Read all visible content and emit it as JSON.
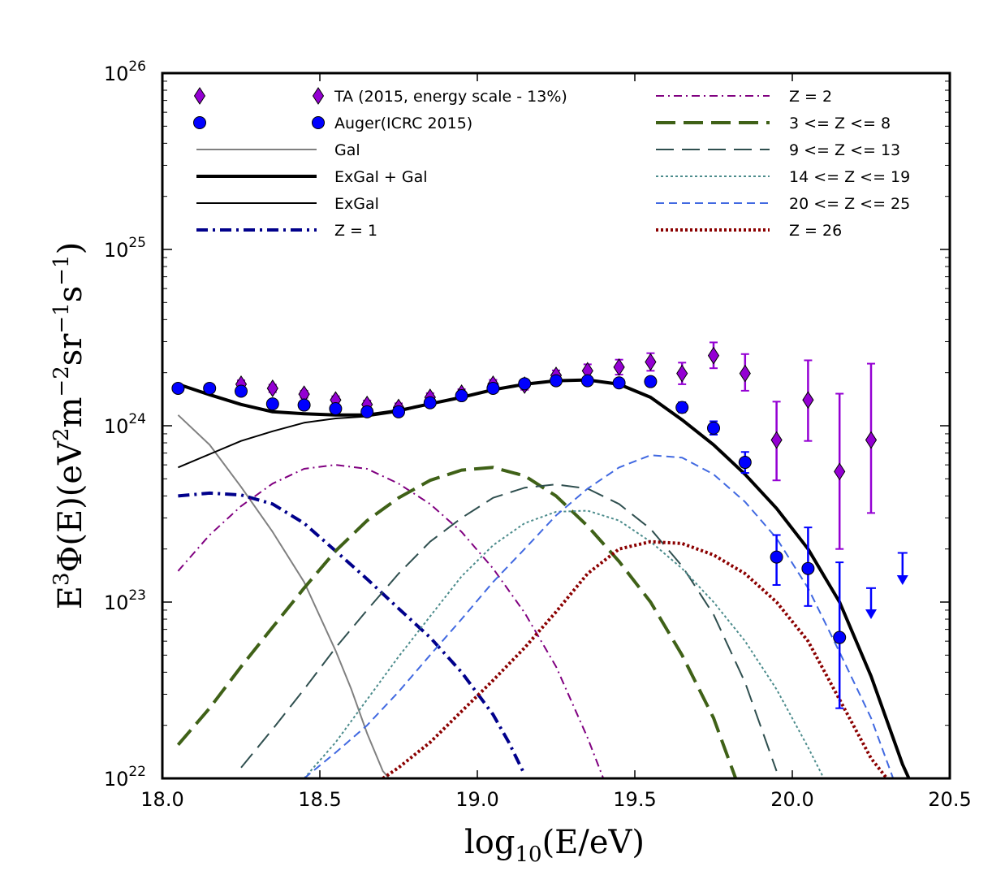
{
  "chart_data": {
    "type": "line",
    "title": "",
    "xlabel": "log10(E/eV)",
    "ylabel": "E3Φ(E)(eV2m−2sr−1s−1)",
    "xlim": [
      18.0,
      20.5
    ],
    "ylim": [
      1e+22,
      1e+26
    ],
    "yscale": "log",
    "grid": false,
    "legend_position": "top",
    "x_ticks": [
      {
        "value": 18.0,
        "label": "18.0"
      },
      {
        "value": 18.5,
        "label": "18.5"
      },
      {
        "value": 19.0,
        "label": "19.0"
      },
      {
        "value": 19.5,
        "label": "19.5"
      },
      {
        "value": 20.0,
        "label": "20.0"
      },
      {
        "value": 20.5,
        "label": "20.5"
      }
    ],
    "y_ticks": [
      {
        "value": 22,
        "base": "10",
        "exp": "22"
      },
      {
        "value": 23,
        "base": "10",
        "exp": "23"
      },
      {
        "value": 24,
        "base": "10",
        "exp": "24"
      },
      {
        "value": 25,
        "base": "10",
        "exp": "25"
      },
      {
        "value": 26,
        "base": "10",
        "exp": "26"
      }
    ],
    "y_label_parts": {
      "a": "E",
      "a_sup": "3",
      "b": "Φ(E)(eV",
      "b_sup": "2",
      "c": "m",
      "c_sup": "−2",
      "d": "sr",
      "d_sup": "−1",
      "e": "s",
      "e_sup": "−1",
      "f": ")"
    },
    "x_label_parts": {
      "a": "log",
      "a_sub": "10",
      "b": "(E/eV)"
    },
    "series": [
      {
        "name": "Gal",
        "color": "#808080",
        "width": 2,
        "dash": "",
        "x": [
          18.05,
          18.15,
          18.25,
          18.35,
          18.45,
          18.55,
          18.6,
          18.65,
          18.7,
          18.72
        ],
        "y": [
          1.15e+24,
          7.8e+23,
          4.5e+23,
          2.5e+23,
          1.3e+23,
          5.3e+22,
          3.2e+22,
          1.8e+22,
          1.1e+22,
          1e+22
        ]
      },
      {
        "name": "ExGal + Gal",
        "color": "#000000",
        "width": 4,
        "dash": "",
        "x": [
          18.05,
          18.15,
          18.25,
          18.35,
          18.45,
          18.55,
          18.65,
          18.75,
          18.85,
          18.95,
          19.05,
          19.15,
          19.25,
          19.35,
          19.45,
          19.55,
          19.65,
          19.75,
          19.85,
          19.95,
          20.05,
          20.15,
          20.25,
          20.35,
          20.37
        ],
        "y": [
          1.72e+24,
          1.5e+24,
          1.32e+24,
          1.2e+24,
          1.17e+24,
          1.15e+24,
          1.15e+24,
          1.22e+24,
          1.33e+24,
          1.45e+24,
          1.6e+24,
          1.72e+24,
          1.8e+24,
          1.82e+24,
          1.72e+24,
          1.45e+24,
          1.08e+24,
          7.8e+23,
          5.3e+23,
          3.4e+23,
          2e+23,
          1e+23,
          3.8e+22,
          1.2e+22,
          1e+22
        ]
      },
      {
        "name": "ExGal",
        "color": "#000000",
        "width": 2,
        "dash": "",
        "x": [
          18.05,
          18.15,
          18.25,
          18.35,
          18.45,
          18.55,
          18.65,
          18.75,
          18.85,
          18.95,
          19.05,
          19.15,
          19.25,
          19.35
        ],
        "y": [
          5.8e+23,
          6.9e+23,
          8.2e+23,
          9.3e+23,
          1.04e+24,
          1.1e+24,
          1.13e+24,
          1.2e+24,
          1.33e+24,
          1.45e+24,
          1.6e+24,
          1.72e+24,
          1.8e+24,
          1.82e+24
        ]
      },
      {
        "name": "Z = 1",
        "color": "#00008b",
        "width": 4,
        "dash": "14,6,3,6",
        "x": [
          18.05,
          18.15,
          18.25,
          18.35,
          18.45,
          18.55,
          18.65,
          18.75,
          18.85,
          18.95,
          19.05,
          19.1,
          19.15
        ],
        "y": [
          4e+23,
          4.15e+23,
          4.05e+23,
          3.6e+23,
          2.8e+23,
          1.95e+23,
          1.35e+23,
          9.2e+22,
          6.3e+22,
          4e+22,
          2.3e+22,
          1.6e+22,
          1.05e+22
        ]
      },
      {
        "name": "Z = 2",
        "color": "#800080",
        "width": 2,
        "dash": "10,5,2,5",
        "x": [
          18.05,
          18.15,
          18.25,
          18.35,
          18.45,
          18.55,
          18.65,
          18.75,
          18.85,
          18.95,
          19.05,
          19.15,
          19.25,
          19.35,
          19.4
        ],
        "y": [
          1.5e+23,
          2.4e+23,
          3.5e+23,
          4.7e+23,
          5.7e+23,
          6e+23,
          5.7e+23,
          4.7e+23,
          3.6e+23,
          2.5e+23,
          1.55e+23,
          8.7e+22,
          4.3e+22,
          1.7e+22,
          1e+22
        ]
      },
      {
        "name": "3 <= Z <= 8",
        "color": "#3f6117",
        "width": 4,
        "dash": "24,10",
        "x": [
          18.05,
          18.15,
          18.25,
          18.35,
          18.45,
          18.55,
          18.65,
          18.75,
          18.85,
          18.95,
          19.05,
          19.15,
          19.25,
          19.35,
          19.45,
          19.55,
          19.65,
          19.75,
          19.82
        ],
        "y": [
          1.55e+22,
          2.5e+22,
          4.3e+22,
          7.2e+22,
          1.2e+23,
          1.95e+23,
          2.9e+23,
          3.9e+23,
          4.9e+23,
          5.6e+23,
          5.8e+23,
          5.2e+23,
          4e+23,
          2.7e+23,
          1.7e+23,
          1e+23,
          5e+22,
          2.2e+22,
          1e+22
        ]
      },
      {
        "name": "9 <= Z <= 13",
        "color": "#2f4f4f",
        "width": 2,
        "dash": "22,10",
        "x": [
          18.25,
          18.35,
          18.45,
          18.55,
          18.65,
          18.75,
          18.85,
          18.95,
          19.05,
          19.15,
          19.25,
          19.35,
          19.45,
          19.55,
          19.65,
          19.75,
          19.85,
          19.95
        ],
        "y": [
          1.15e+22,
          1.9e+22,
          3.2e+22,
          5.5e+22,
          9e+22,
          1.45e+23,
          2.2e+23,
          3e+23,
          3.9e+23,
          4.45e+23,
          4.65e+23,
          4.4e+23,
          3.6e+23,
          2.6e+23,
          1.6e+23,
          8.5e+22,
          3.5e+22,
          1.1e+22
        ]
      },
      {
        "name": "14 <= Z <= 19",
        "color": "#4c8c8c",
        "width": 2,
        "dash": "3,3",
        "x": [
          18.45,
          18.55,
          18.65,
          18.75,
          18.85,
          18.95,
          19.05,
          19.15,
          19.25,
          19.35,
          19.45,
          19.55,
          19.65,
          19.75,
          19.85,
          19.95,
          20.05,
          20.1
        ],
        "y": [
          1e+22,
          1.6e+22,
          2.8e+22,
          4.9e+22,
          8.3e+22,
          1.4e+23,
          2.1e+23,
          2.8e+23,
          3.25e+23,
          3.3e+23,
          2.9e+23,
          2.2e+23,
          1.55e+23,
          1e+23,
          6e+22,
          3.2e+22,
          1.5e+22,
          1e+22
        ]
      },
      {
        "name": "20 <= Z <= 25",
        "color": "#4169e1",
        "width": 2,
        "dash": "10,6",
        "x": [
          18.45,
          18.55,
          18.65,
          18.75,
          18.85,
          18.95,
          19.05,
          19.15,
          19.25,
          19.35,
          19.45,
          19.55,
          19.65,
          19.75,
          19.85,
          19.95,
          20.05,
          20.15,
          20.25,
          20.32
        ],
        "y": [
          1e+22,
          1.4e+22,
          2e+22,
          3.1e+22,
          5e+22,
          8e+22,
          1.3e+23,
          2e+23,
          3.1e+23,
          4.4e+23,
          5.8e+23,
          6.8e+23,
          6.6e+23,
          5.3e+23,
          3.7e+23,
          2.3e+23,
          1.2e+23,
          5.2e+22,
          2.2e+22,
          1e+22
        ]
      },
      {
        "name": "Z = 26",
        "color": "#8b0000",
        "width": 4,
        "dash": "3,3",
        "x": [
          18.7,
          18.75,
          18.85,
          18.95,
          19.05,
          19.15,
          19.25,
          19.35,
          19.45,
          19.55,
          19.65,
          19.75,
          19.85,
          19.95,
          20.05,
          20.15,
          20.25,
          20.3
        ],
        "y": [
          1e+22,
          1.15e+22,
          1.6e+22,
          2.4e+22,
          3.6e+22,
          5.5e+22,
          8.8e+22,
          1.45e+23,
          2e+23,
          2.2e+23,
          2.15e+23,
          1.85e+23,
          1.45e+23,
          1e+23,
          6e+22,
          2.8e+22,
          1.3e+22,
          1e+22
        ]
      }
    ],
    "data_series": [
      {
        "name": "TA (2015, energy scale - 13%)",
        "color": "#9400d3",
        "marker": "diamond",
        "points": [
          {
            "x": 18.25,
            "y": 1.72e+24,
            "lo": 1.63e+24,
            "hi": 1.81e+24
          },
          {
            "x": 18.35,
            "y": 1.63e+24,
            "lo": 1.55e+24,
            "hi": 1.71e+24
          },
          {
            "x": 18.45,
            "y": 1.51e+24,
            "lo": 1.44e+24,
            "hi": 1.58e+24
          },
          {
            "x": 18.55,
            "y": 1.4e+24,
            "lo": 1.33e+24,
            "hi": 1.47e+24
          },
          {
            "x": 18.65,
            "y": 1.32e+24,
            "lo": 1.25e+24,
            "hi": 1.39e+24
          },
          {
            "x": 18.75,
            "y": 1.27e+24,
            "lo": 1.2e+24,
            "hi": 1.34e+24
          },
          {
            "x": 18.85,
            "y": 1.45e+24,
            "lo": 1.38e+24,
            "hi": 1.53e+24
          },
          {
            "x": 18.95,
            "y": 1.53e+24,
            "lo": 1.45e+24,
            "hi": 1.61e+24
          },
          {
            "x": 19.05,
            "y": 1.72e+24,
            "lo": 1.63e+24,
            "hi": 1.82e+24
          },
          {
            "x": 19.15,
            "y": 1.7e+24,
            "lo": 1.6e+24,
            "hi": 1.81e+24
          },
          {
            "x": 19.25,
            "y": 1.93e+24,
            "lo": 1.8e+24,
            "hi": 2.06e+24
          },
          {
            "x": 19.35,
            "y": 2.05e+24,
            "lo": 1.88e+24,
            "hi": 2.23e+24
          },
          {
            "x": 19.45,
            "y": 2.15e+24,
            "lo": 1.95e+24,
            "hi": 2.37e+24
          },
          {
            "x": 19.55,
            "y": 2.3e+24,
            "lo": 2.05e+24,
            "hi": 2.58e+24
          },
          {
            "x": 19.65,
            "y": 1.98e+24,
            "lo": 1.72e+24,
            "hi": 2.28e+24
          },
          {
            "x": 19.75,
            "y": 2.5e+24,
            "lo": 2.12e+24,
            "hi": 2.97e+24
          },
          {
            "x": 19.85,
            "y": 1.98e+24,
            "lo": 1.58e+24,
            "hi": 2.55e+24
          },
          {
            "x": 19.95,
            "y": 8.3e+23,
            "lo": 4.9e+23,
            "hi": 1.37e+24
          },
          {
            "x": 20.05,
            "y": 1.4e+24,
            "lo": 8.2e+23,
            "hi": 2.35e+24
          },
          {
            "x": 20.15,
            "y": 5.5e+23,
            "lo": 2e+23,
            "hi": 1.52e+24
          },
          {
            "x": 20.25,
            "y": 8.3e+23,
            "lo": 3.2e+23,
            "hi": 2.25e+24
          }
        ]
      },
      {
        "name": "Auger(ICRC 2015)",
        "color": "#0000ff",
        "marker": "circle",
        "points": [
          {
            "x": 18.05,
            "y": 1.63e+24,
            "lo": 1.6e+24,
            "hi": 1.66e+24
          },
          {
            "x": 18.15,
            "y": 1.63e+24,
            "lo": 1.6e+24,
            "hi": 1.66e+24
          },
          {
            "x": 18.25,
            "y": 1.57e+24,
            "lo": 1.54e+24,
            "hi": 1.6e+24
          },
          {
            "x": 18.35,
            "y": 1.33e+24,
            "lo": 1.3e+24,
            "hi": 1.36e+24
          },
          {
            "x": 18.45,
            "y": 1.31e+24,
            "lo": 1.28e+24,
            "hi": 1.34e+24
          },
          {
            "x": 18.55,
            "y": 1.25e+24,
            "lo": 1.22e+24,
            "hi": 1.28e+24
          },
          {
            "x": 18.65,
            "y": 1.2e+24,
            "lo": 1.17e+24,
            "hi": 1.23e+24
          },
          {
            "x": 18.75,
            "y": 1.2e+24,
            "lo": 1.17e+24,
            "hi": 1.23e+24
          },
          {
            "x": 18.85,
            "y": 1.35e+24,
            "lo": 1.32e+24,
            "hi": 1.38e+24
          },
          {
            "x": 18.95,
            "y": 1.48e+24,
            "lo": 1.44e+24,
            "hi": 1.52e+24
          },
          {
            "x": 19.05,
            "y": 1.63e+24,
            "lo": 1.58e+24,
            "hi": 1.68e+24
          },
          {
            "x": 19.15,
            "y": 1.73e+24,
            "lo": 1.68e+24,
            "hi": 1.78e+24
          },
          {
            "x": 19.25,
            "y": 1.8e+24,
            "lo": 1.74e+24,
            "hi": 1.86e+24
          },
          {
            "x": 19.35,
            "y": 1.8e+24,
            "lo": 1.73e+24,
            "hi": 1.87e+24
          },
          {
            "x": 19.45,
            "y": 1.75e+24,
            "lo": 1.67e+24,
            "hi": 1.83e+24
          },
          {
            "x": 19.55,
            "y": 1.78e+24,
            "lo": 1.69e+24,
            "hi": 1.88e+24
          },
          {
            "x": 19.65,
            "y": 1.27e+24,
            "lo": 1.19e+24,
            "hi": 1.36e+24
          },
          {
            "x": 19.75,
            "y": 9.7e+23,
            "lo": 8.9e+23,
            "hi": 1.06e+24
          },
          {
            "x": 19.85,
            "y": 6.2e+23,
            "lo": 5.4e+23,
            "hi": 7.1e+23
          },
          {
            "x": 19.95,
            "y": 1.8e+23,
            "lo": 1.25e+23,
            "hi": 2.4e+23
          },
          {
            "x": 20.05,
            "y": 1.55e+23,
            "lo": 9.5e+22,
            "hi": 2.65e+23
          },
          {
            "x": 20.15,
            "y": 6.3e+22,
            "lo": 2.5e+22,
            "hi": 1.68e+23
          }
        ],
        "upper_limits": [
          {
            "x": 20.25,
            "y": 1.2e+23,
            "arrow_to": 8e+22
          },
          {
            "x": 20.35,
            "y": 1.9e+23,
            "arrow_to": 1.25e+23
          }
        ]
      }
    ],
    "legend_left": [
      {
        "label": "TA (2015, energy scale - 13%)",
        "kind": "diamond",
        "color": "#9400d3"
      },
      {
        "label": "Auger(ICRC 2015)",
        "kind": "circle",
        "color": "#0000ff"
      },
      {
        "label": "Gal",
        "kind": "line",
        "color": "#808080",
        "width": 2,
        "dash": ""
      },
      {
        "label": "ExGal + Gal",
        "kind": "line",
        "color": "#000000",
        "width": 4,
        "dash": ""
      },
      {
        "label": "ExGal",
        "kind": "line",
        "color": "#000000",
        "width": 2,
        "dash": ""
      },
      {
        "label": "Z = 1",
        "kind": "line",
        "color": "#00008b",
        "width": 4,
        "dash": "14,6,3,6"
      }
    ],
    "legend_right": [
      {
        "label": "Z = 2",
        "kind": "line",
        "color": "#800080",
        "width": 2,
        "dash": "10,5,2,5"
      },
      {
        "label": "3 <= Z <= 8",
        "kind": "line",
        "color": "#3f6117",
        "width": 4,
        "dash": "24,10"
      },
      {
        "label": "9 <= Z <= 13",
        "kind": "line",
        "color": "#2f4f4f",
        "width": 2,
        "dash": "22,10"
      },
      {
        "label": "14 <= Z <= 19",
        "kind": "line",
        "color": "#4c8c8c",
        "width": 2,
        "dash": "3,3"
      },
      {
        "label": "20 <= Z <= 25",
        "kind": "line",
        "color": "#4169e1",
        "width": 2,
        "dash": "10,6"
      },
      {
        "label": "Z = 26",
        "kind": "line",
        "color": "#8b0000",
        "width": 4,
        "dash": "3,3"
      }
    ]
  }
}
